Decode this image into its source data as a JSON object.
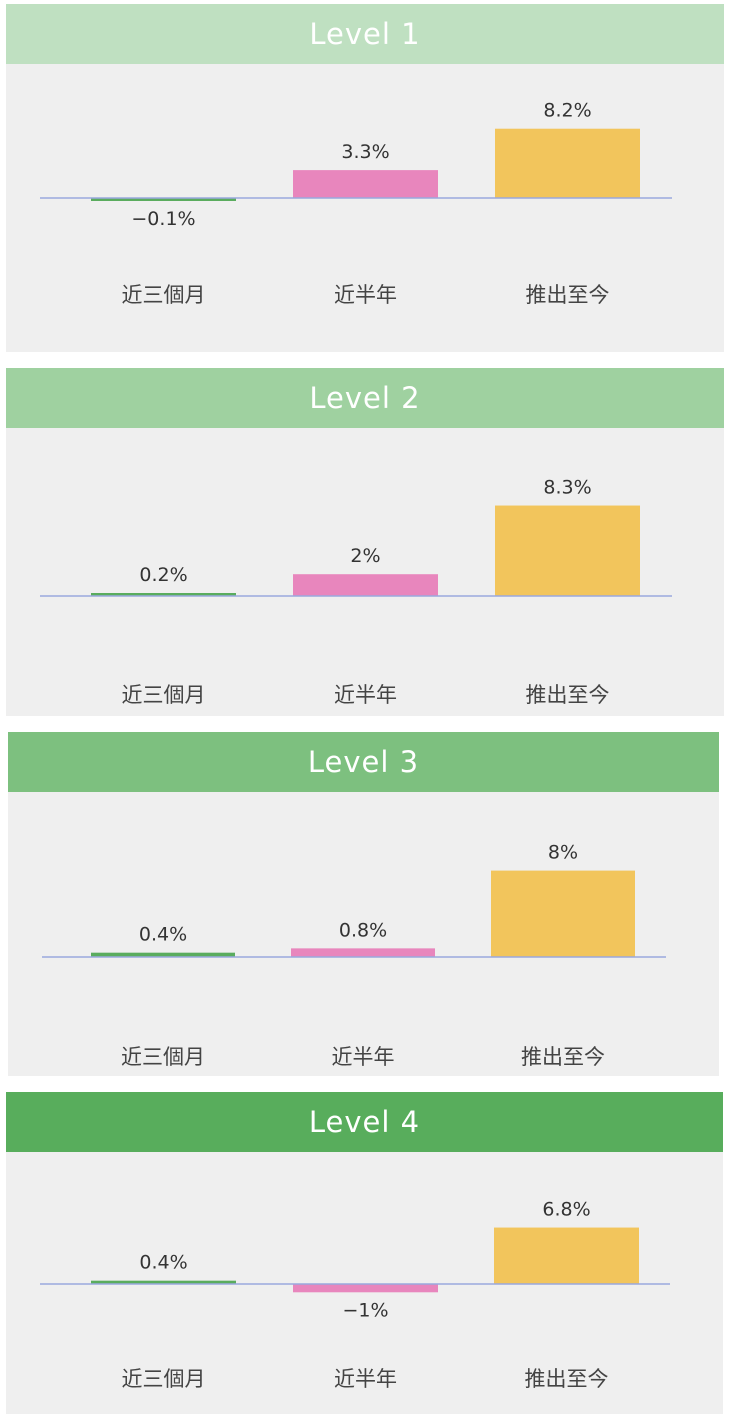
{
  "chart_data": [
    {
      "type": "bar",
      "title": "Level 1",
      "header_color": "#bfe0c1",
      "categories": [
        "近三個月",
        "近半年",
        "推出至今"
      ],
      "values": [
        -0.1,
        3.3,
        8.2
      ],
      "value_labels": [
        "−0.1%",
        "3.3%",
        "8.2%"
      ],
      "colors": [
        "#5aac5e",
        "#e886bd",
        "#f2c55c"
      ]
    },
    {
      "type": "bar",
      "title": "Level 2",
      "header_color": "#9fd1a0",
      "categories": [
        "近三個月",
        "近半年",
        "推出至今"
      ],
      "values": [
        0.2,
        2,
        8.3
      ],
      "value_labels": [
        "0.2%",
        "2%",
        "8.3%"
      ],
      "colors": [
        "#5aac5e",
        "#e886bd",
        "#f2c55c"
      ]
    },
    {
      "type": "bar",
      "title": "Level 3",
      "header_color": "#7dc07f",
      "categories": [
        "近三個月",
        "近半年",
        "推出至今"
      ],
      "values": [
        0.4,
        0.8,
        8
      ],
      "value_labels": [
        "0.4%",
        "0.8%",
        "8%"
      ],
      "colors": [
        "#5aac5e",
        "#e886bd",
        "#f2c55c"
      ]
    },
    {
      "type": "bar",
      "title": "Level 4",
      "header_color": "#58ad5c",
      "categories": [
        "近三個月",
        "近半年",
        "推出至今"
      ],
      "values": [
        0.4,
        -1,
        6.8
      ],
      "value_labels": [
        "0.4%",
        "−1%",
        "6.8%"
      ],
      "colors": [
        "#5aac5e",
        "#e886bd",
        "#f2c55c"
      ]
    }
  ],
  "axis_color": "#9aa8dd"
}
